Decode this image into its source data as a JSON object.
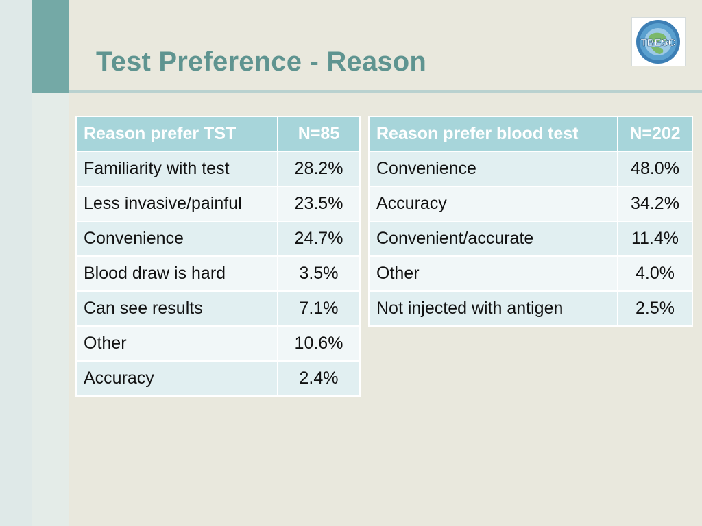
{
  "slide": {
    "title": "Test Preference - Reason",
    "logo_text": "TBESC"
  },
  "tst_table": {
    "headers": [
      "Reason prefer TST",
      "N=85"
    ],
    "rows": [
      [
        "Familiarity with test",
        "28.2%"
      ],
      [
        "Less invasive/painful",
        "23.5%"
      ],
      [
        "Convenience",
        "24.7%"
      ],
      [
        "Blood draw is hard",
        "3.5%"
      ],
      [
        "Can see results",
        "7.1%"
      ],
      [
        "Other",
        "10.6%"
      ],
      [
        "Accuracy",
        "2.4%"
      ]
    ]
  },
  "blood_table": {
    "headers": [
      "Reason prefer blood test",
      "N=202"
    ],
    "rows": [
      [
        "Convenience",
        "48.0%"
      ],
      [
        "Accuracy",
        "34.2%"
      ],
      [
        "Convenient/accurate",
        "11.4%"
      ],
      [
        "Other",
        "4.0%"
      ],
      [
        "Not injected with antigen",
        "2.5%"
      ]
    ]
  },
  "colors": {
    "title": "#5f9490",
    "accent": "#74a9a6",
    "header_fill": "#a7d5da",
    "row_odd": "#e1eff1",
    "row_even": "#f1f7f8",
    "background": "#e9e8dd"
  }
}
